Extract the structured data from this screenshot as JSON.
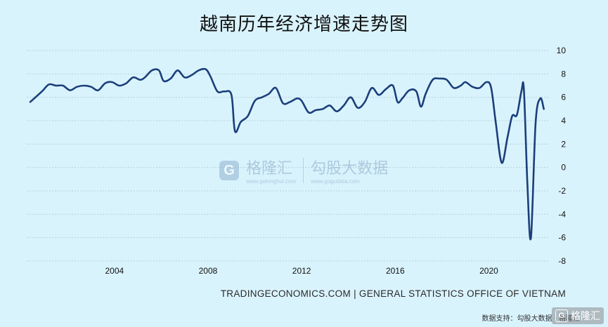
{
  "chart_data": {
    "type": "line",
    "title": "越南历年经济增速走势图",
    "xlabel": "",
    "ylabel": "",
    "x_ticks": [
      "2004",
      "2008",
      "2012",
      "2016",
      "2020"
    ],
    "y_ticks": [
      "10",
      "8",
      "6",
      "4",
      "2",
      "0",
      "-2",
      "-4",
      "-6",
      "-8"
    ],
    "xlim": [
      2000.25,
      2022.6
    ],
    "ylim": [
      -8,
      10
    ],
    "grid": "horizontal",
    "line_color": "#1b3f7a",
    "series": [
      {
        "name": "",
        "x": [
          2000.4,
          2000.9,
          2001.2,
          2001.5,
          2001.8,
          2002.1,
          2002.4,
          2002.7,
          2003.0,
          2003.3,
          2003.6,
          2003.9,
          2004.2,
          2004.5,
          2004.8,
          2005.1,
          2005.3,
          2005.6,
          2005.9,
          2006.1,
          2006.4,
          2006.7,
          2007.0,
          2007.3,
          2007.6,
          2007.9,
          2008.1,
          2008.4,
          2008.7,
          2009.0,
          2009.15,
          2009.4,
          2009.7,
          2010.0,
          2010.3,
          2010.6,
          2010.9,
          2011.2,
          2011.5,
          2011.8,
          2012.0,
          2012.3,
          2012.6,
          2012.9,
          2013.2,
          2013.5,
          2013.8,
          2014.1,
          2014.4,
          2014.7,
          2015.0,
          2015.3,
          2015.6,
          2015.9,
          2016.1,
          2016.3,
          2016.6,
          2016.9,
          2017.1,
          2017.3,
          2017.6,
          2017.9,
          2018.2,
          2018.5,
          2018.8,
          2019.0,
          2019.3,
          2019.6,
          2019.9,
          2020.1,
          2020.3,
          2020.55,
          2020.8,
          2021.0,
          2021.2,
          2021.4,
          2021.5,
          2021.65,
          2021.8,
          2022.0,
          2022.2,
          2022.35
        ],
        "values": [
          5.6,
          6.5,
          7.1,
          7.0,
          7.0,
          6.6,
          6.9,
          7.0,
          6.9,
          6.6,
          7.2,
          7.3,
          7.0,
          7.2,
          7.7,
          7.5,
          7.7,
          8.3,
          8.3,
          7.4,
          7.6,
          8.3,
          7.7,
          7.9,
          8.3,
          8.4,
          7.8,
          6.5,
          6.5,
          6.2,
          3.1,
          3.9,
          4.4,
          5.7,
          6.0,
          6.3,
          6.8,
          5.5,
          5.6,
          5.9,
          5.7,
          4.7,
          4.9,
          5.0,
          5.3,
          4.8,
          5.3,
          6.0,
          5.1,
          5.6,
          6.8,
          6.2,
          6.7,
          7.0,
          5.6,
          5.9,
          6.6,
          6.5,
          5.2,
          6.3,
          7.5,
          7.6,
          7.5,
          6.8,
          7.0,
          7.3,
          6.9,
          6.8,
          7.3,
          6.8,
          3.8,
          0.4,
          2.6,
          4.4,
          4.5,
          6.6,
          6.6,
          -1.5,
          -6.0,
          3.8,
          5.9,
          5.0
        ]
      }
    ]
  },
  "source_text": "TRADINGECONOMICS.COM | GENERAL STATISTICS OFFICE OF VIETNAM",
  "support_text": "数据支持：勾股大数据 · 格隆汇",
  "watermark": {
    "logo_glyph": "G",
    "brand": "格隆汇",
    "brand_url": "www.gelonghui.com",
    "partner": "勾股大数据",
    "partner_url": "www.gogudata.com"
  },
  "corner_logo": {
    "glyph": "G",
    "text": "格隆汇"
  }
}
